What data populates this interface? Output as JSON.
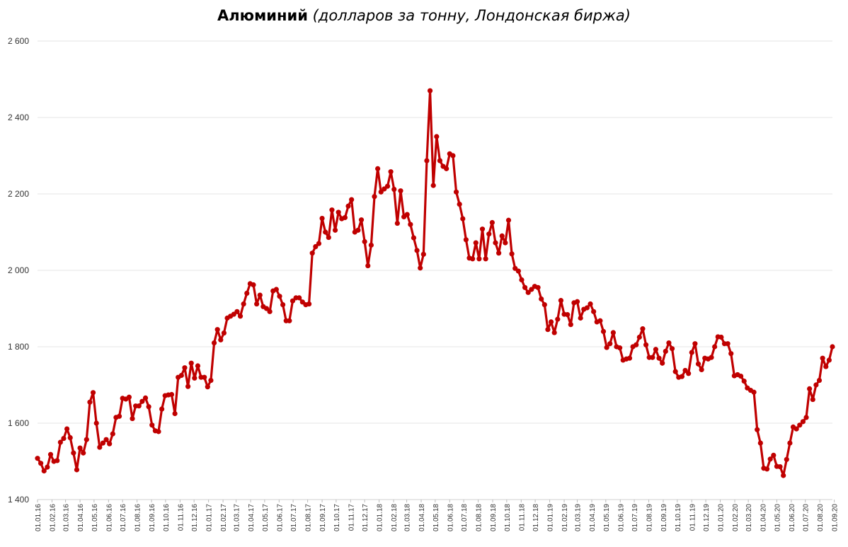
{
  "chart_data": {
    "type": "line",
    "title": "Алюминий",
    "subtitle": "(долларов за тонну, Лондонская биржа)",
    "xlabel": "",
    "ylabel": "",
    "ylim": [
      1400,
      2600
    ],
    "yticks": [
      "1 400",
      "1 600",
      "1 800",
      "2 000",
      "2 200",
      "2 400",
      "2 600"
    ],
    "ytick_values": [
      1400,
      1600,
      1800,
      2000,
      2200,
      2400,
      2600
    ],
    "grid": true,
    "legend": "none",
    "x_start": "2016-01-01",
    "x_frequency": "weekly",
    "x_ticks": [
      "01.01.16",
      "01.02.16",
      "01.03.16",
      "01.04.16",
      "01.05.16",
      "01.06.16",
      "01.07.16",
      "01.08.16",
      "01.09.16",
      "01.10.16",
      "01.11.16",
      "01.12.16",
      "01.01.17",
      "01.02.17",
      "01.03.17",
      "01.04.17",
      "01.05.17",
      "01.06.17",
      "01.07.17",
      "01.08.17",
      "01.09.17",
      "01.10.17",
      "01.11.17",
      "01.12.17",
      "01.01.18",
      "01.02.18",
      "01.03.18",
      "01.04.18",
      "01.05.18",
      "01.06.18",
      "01.07.18",
      "01.08.18",
      "01.09.18",
      "01.10.18",
      "01.11.18",
      "01.12.18",
      "01.01.19",
      "01.02.19",
      "01.03.19",
      "01.04.19",
      "01.05.19",
      "01.06.19",
      "01.07.19",
      "01.08.19",
      "01.09.19",
      "01.10.19",
      "01.11.19",
      "01.12.19",
      "01.01.20",
      "01.02.20",
      "01.03.20",
      "01.04.20",
      "01.05.20",
      "01.06.20",
      "01.07.20",
      "01.08.20",
      "01.09.20"
    ],
    "series": [
      {
        "color": "#c00000",
        "values": [
          1508,
          1495,
          1475,
          1485,
          1518,
          1500,
          1502,
          1550,
          1560,
          1585,
          1562,
          1522,
          1478,
          1535,
          1522,
          1557,
          1655,
          1680,
          1600,
          1537,
          1548,
          1557,
          1546,
          1572,
          1615,
          1618,
          1665,
          1663,
          1668,
          1612,
          1645,
          1645,
          1657,
          1666,
          1643,
          1595,
          1580,
          1578,
          1637,
          1672,
          1674,
          1675,
          1625,
          1720,
          1725,
          1745,
          1696,
          1757,
          1718,
          1750,
          1720,
          1720,
          1695,
          1712,
          1810,
          1845,
          1818,
          1836,
          1875,
          1880,
          1885,
          1892,
          1880,
          1912,
          1940,
          1965,
          1962,
          1912,
          1935,
          1905,
          1900,
          1892,
          1946,
          1950,
          1932,
          1910,
          1868,
          1868,
          1920,
          1928,
          1928,
          1917,
          1910,
          1912,
          2045,
          2062,
          2070,
          2136,
          2100,
          2086,
          2158,
          2105,
          2152,
          2135,
          2138,
          2168,
          2185,
          2100,
          2105,
          2132,
          2075,
          2012,
          2066,
          2193,
          2266,
          2205,
          2213,
          2220,
          2258,
          2212,
          2123,
          2208,
          2140,
          2146,
          2120,
          2085,
          2052,
          2006,
          2042,
          2287,
          2470,
          2222,
          2350,
          2287,
          2272,
          2266,
          2305,
          2300,
          2205,
          2173,
          2135,
          2080,
          2032,
          2030,
          2072,
          2030,
          2108,
          2030,
          2095,
          2125,
          2072,
          2045,
          2090,
          2072,
          2131,
          2043,
          2005,
          1998,
          1975,
          1955,
          1942,
          1950,
          1958,
          1955,
          1925,
          1910,
          1845,
          1865,
          1837,
          1872,
          1921,
          1885,
          1884,
          1858,
          1915,
          1918,
          1875,
          1898,
          1902,
          1912,
          1892,
          1865,
          1868,
          1840,
          1798,
          1808,
          1837,
          1800,
          1797,
          1765,
          1768,
          1770,
          1800,
          1805,
          1825,
          1847,
          1805,
          1772,
          1772,
          1793,
          1770,
          1757,
          1788,
          1810,
          1795,
          1735,
          1720,
          1722,
          1738,
          1730,
          1785,
          1808,
          1755,
          1740,
          1770,
          1768,
          1772,
          1800,
          1826,
          1825,
          1808,
          1808,
          1782,
          1724,
          1727,
          1723,
          1710,
          1692,
          1686,
          1681,
          1583,
          1548,
          1482,
          1480,
          1506,
          1516,
          1487,
          1486,
          1463,
          1505,
          1548,
          1590,
          1585,
          1595,
          1604,
          1615,
          1690,
          1662,
          1700,
          1712,
          1770,
          1748,
          1765,
          1800
        ]
      }
    ]
  }
}
